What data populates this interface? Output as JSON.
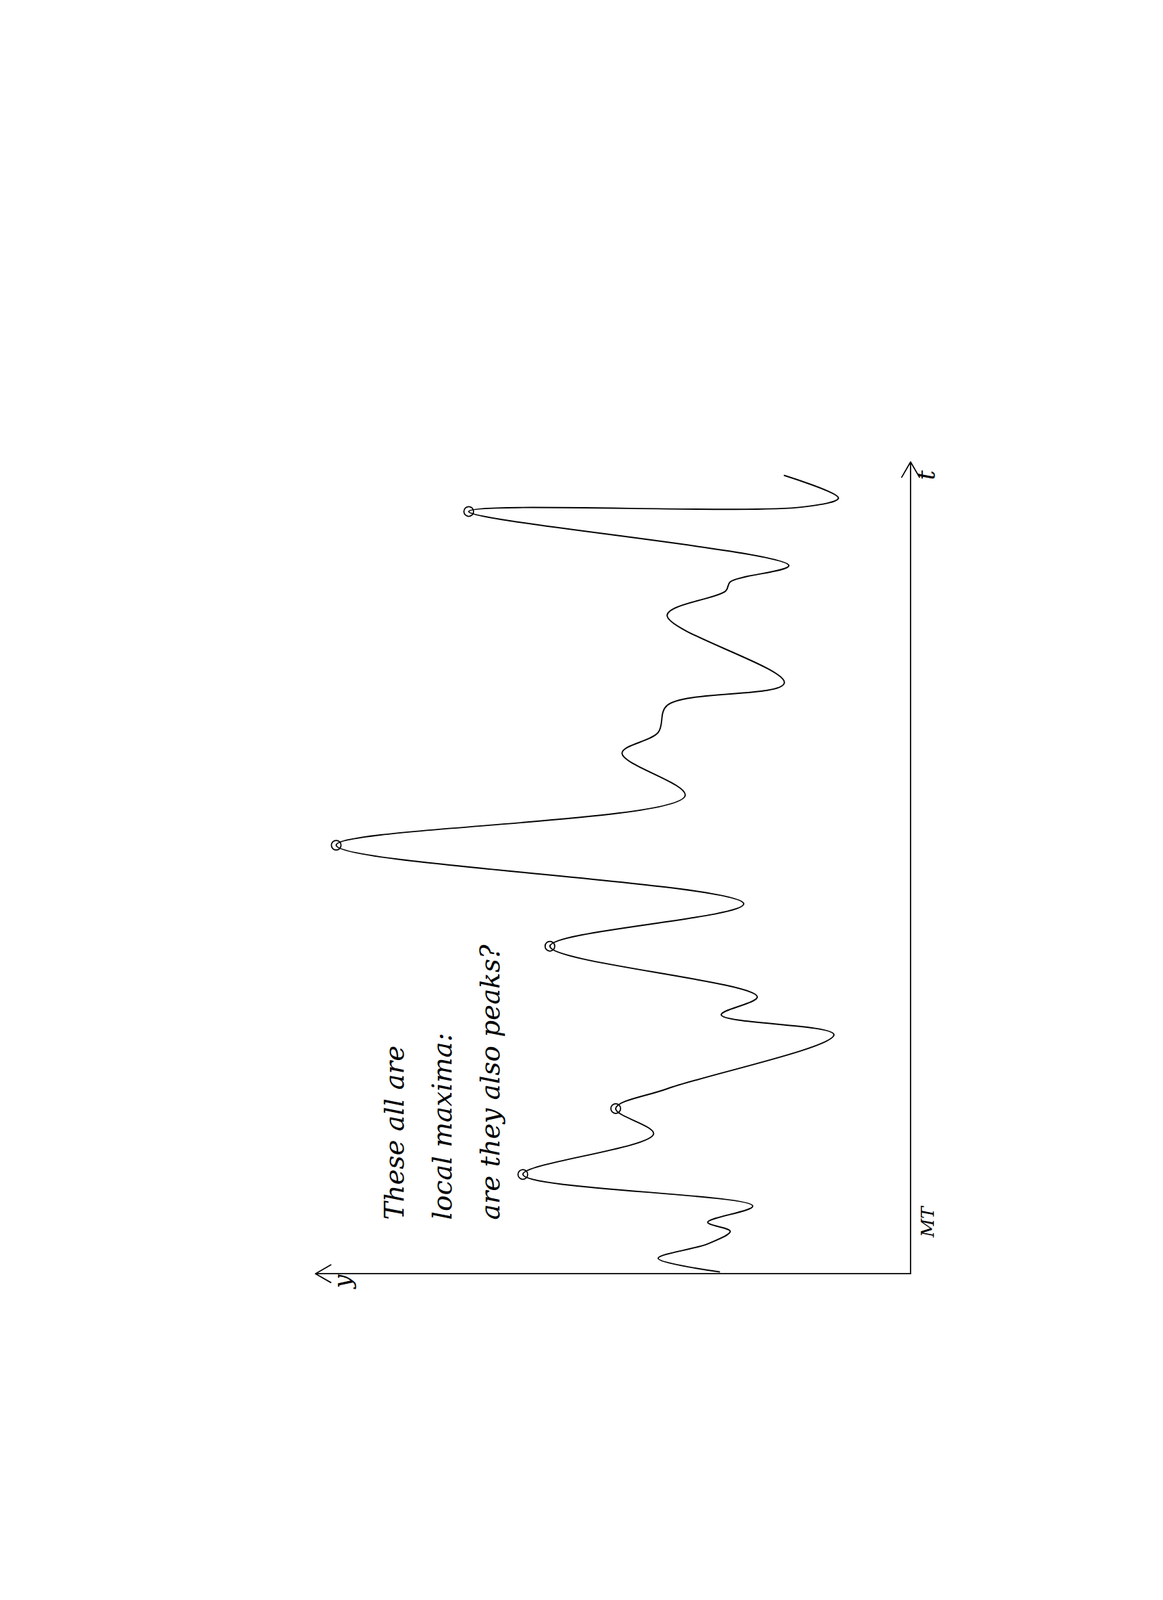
{
  "chart_data": {
    "type": "line",
    "annotation": [
      "These all are",
      "local maxima:",
      "are they also peaks?"
    ],
    "xlabel": "t",
    "ylabel": "y",
    "signature": "MT",
    "x": [
      0.2,
      1.7,
      3.3,
      4.7,
      5.7,
      7.5,
      11.0,
      15.5,
      18.3,
      20.5,
      26.5,
      28.7,
      30.7,
      36.3,
      41.0,
      47.5,
      53.0,
      57.7,
      60.0,
      63.0,
      65.5,
      73.0,
      75.7,
      76.7,
      78.5,
      84.5,
      85.0,
      86.0,
      88.5
    ],
    "values": [
      21.2,
      28.0,
      22.5,
      20.0,
      22.5,
      17.5,
      43.0,
      28.5,
      32.7,
      27.0,
      8.5,
      21.0,
      17.0,
      40.0,
      18.5,
      63.7,
      25.0,
      32.0,
      28.0,
      27.0,
      14.0,
      27.0,
      20.5,
      20.0,
      13.5,
      49.0,
      12.0,
      8.0,
      14.0
    ],
    "color": "#000000",
    "line_style": "solid",
    "highlighted": {
      "marker": "circle",
      "x": [
        11.0,
        18.3,
        36.3,
        47.5,
        84.5
      ],
      "y": [
        43.0,
        32.7,
        40.0,
        63.7,
        49.0
      ]
    },
    "xlim": [
      0,
      90
    ],
    "ylim": [
      0,
      66
    ],
    "xticks": [],
    "yticks": [],
    "tick_labels": false,
    "grid": false
  }
}
